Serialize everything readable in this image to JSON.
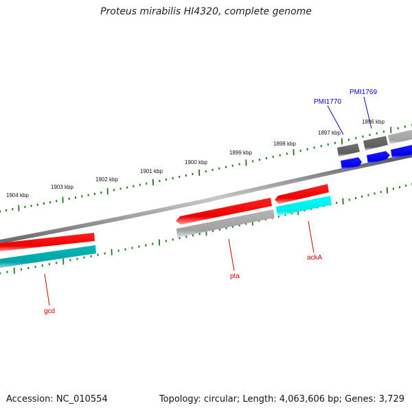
{
  "title": "Proteus mirabilis HI4320, complete genome",
  "footer": {
    "accession": "Accession: NC_010554",
    "topology": "Topology: circular; Length: 4,063,606 bp; Genes: 3,729"
  },
  "ticks": [
    {
      "kbp": 1896,
      "label": "1896 kbp"
    },
    {
      "kbp": 1897,
      "label": "1897 kbp"
    },
    {
      "kbp": 1898,
      "label": "1898 kbp"
    },
    {
      "kbp": 1899,
      "label": "1899 kbp"
    },
    {
      "kbp": 1900,
      "label": "1900 kbp"
    },
    {
      "kbp": 1901,
      "label": "1901 kbp"
    },
    {
      "kbp": 1902,
      "label": "1902 kbp"
    },
    {
      "kbp": 1903,
      "label": "1903 kbp"
    },
    {
      "kbp": 1904,
      "label": "1904 kbp"
    }
  ],
  "genes": [
    {
      "name": "gcd",
      "color": "#cc0000"
    },
    {
      "name": "pta",
      "color": "#cc0000"
    },
    {
      "name": "ackA",
      "color": "#cc0000"
    },
    {
      "name": "PMI1770",
      "color": "#0000cc"
    },
    {
      "name": "PMI1769",
      "color": "#0000cc"
    }
  ],
  "colors": {
    "backbone": "#808080",
    "tick": "#1a7a1a",
    "gene_forward": "#0000ff",
    "gene_reverse": "#ff0000",
    "cds_reverse": "#00e5e5",
    "cds_reverse_dark": "#00b0b0",
    "cds_gray": "#a8a8a8",
    "cds_dark_gray": "#666666"
  }
}
